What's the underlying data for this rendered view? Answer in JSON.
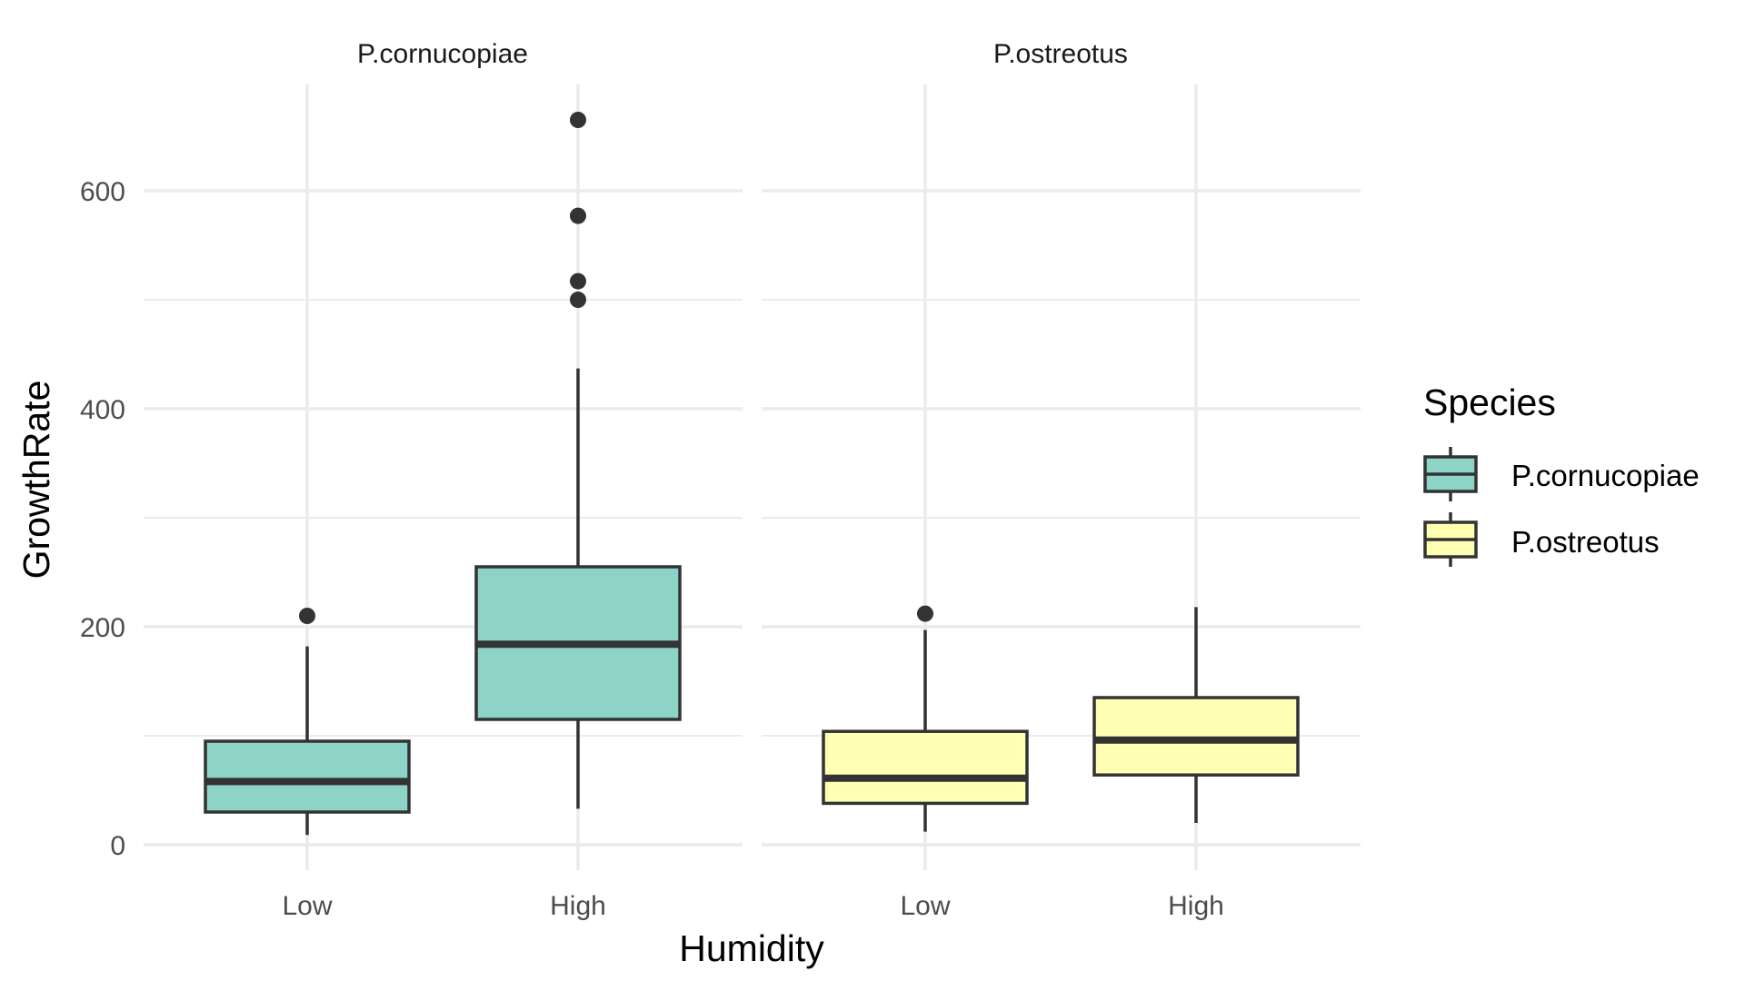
{
  "chart_data": {
    "type": "boxplot",
    "facet_by": "Species",
    "panels": [
      "P.cornucopiae",
      "P.ostreotus"
    ],
    "categories": [
      "Low",
      "High"
    ],
    "xlabel": "Humidity",
    "ylabel": "GrowthRate",
    "y_ticks": [
      0,
      200,
      400,
      600
    ],
    "ylim": [
      -30,
      700
    ],
    "grid": true,
    "legend": {
      "title": "Species",
      "position": "right",
      "entries": [
        {
          "label": "P.cornucopiae",
          "color": "#8dd3c7"
        },
        {
          "label": "P.ostreotus",
          "color": "#ffffb3"
        }
      ]
    },
    "boxes": [
      {
        "panel": "P.cornucopiae",
        "humidity": "Low",
        "whisker_low": 9,
        "q1": 30,
        "median": 58,
        "q3": 95,
        "whisker_high": 182,
        "outliers": [
          210
        ]
      },
      {
        "panel": "P.cornucopiae",
        "humidity": "High",
        "whisker_low": 33,
        "q1": 115,
        "median": 184,
        "q3": 255,
        "whisker_high": 437,
        "outliers": [
          500,
          517,
          577,
          665
        ]
      },
      {
        "panel": "P.ostreotus",
        "humidity": "Low",
        "whisker_low": 12,
        "q1": 38,
        "median": 61,
        "q3": 104,
        "whisker_high": 197,
        "outliers": [
          212
        ]
      },
      {
        "panel": "P.ostreotus",
        "humidity": "High",
        "whisker_low": 20,
        "q1": 64,
        "median": 96,
        "q3": 135,
        "whisker_high": 218,
        "outliers": []
      }
    ],
    "colors": {
      "box_outline": "#333333",
      "outlier": "#333333",
      "grid": "#ebebeb"
    }
  }
}
